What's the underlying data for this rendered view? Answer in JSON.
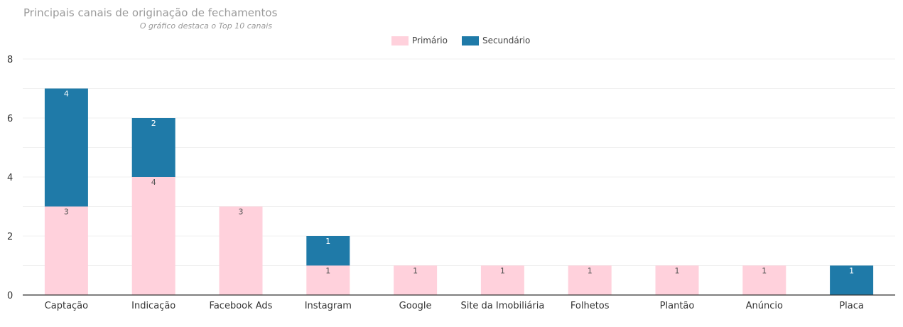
{
  "chart_data": {
    "type": "bar",
    "stacked": true,
    "title": "Principais canais de originação de fechamentos",
    "subtitle": "O gráfico destaca o Top 10 canais",
    "categories": [
      "Captação",
      "Indicação",
      "Facebook Ads",
      "Instagram",
      "Google",
      "Site da Imobiliária",
      "Folhetos",
      "Plantão",
      "Anúncio",
      "Placa"
    ],
    "series": [
      {
        "name": "Primário",
        "color": "#ffd1dc",
        "label_color": "#555555",
        "values": [
          3,
          4,
          3,
          1,
          1,
          1,
          1,
          1,
          1,
          0
        ]
      },
      {
        "name": "Secundário",
        "color": "#1f7aa8",
        "label_color": "#ffffff",
        "values": [
          4,
          2,
          0,
          1,
          0,
          0,
          0,
          0,
          0,
          1
        ]
      }
    ],
    "ylim": [
      0,
      8
    ],
    "yticks": [
      0,
      2,
      4,
      6,
      8
    ],
    "grid": true,
    "legend": "top-center"
  }
}
